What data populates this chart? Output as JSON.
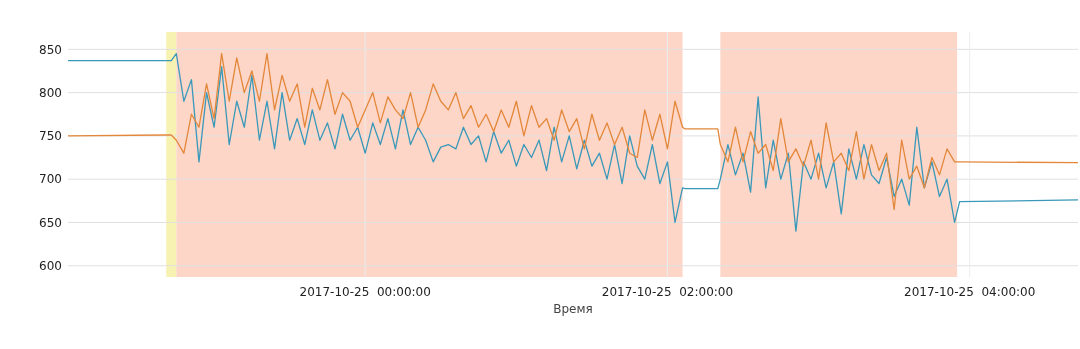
{
  "chart_data": {
    "type": "line",
    "xlabel": "Время",
    "x": [
      "2017-10-24T22:02",
      "2017-10-24T22:40",
      "2017-10-24T22:43",
      "2017-10-24T22:45",
      "2017-10-24T22:48",
      "2017-10-24T22:51",
      "2017-10-24T22:54",
      "2017-10-24T22:57",
      "2017-10-24T23:00",
      "2017-10-24T23:03",
      "2017-10-24T23:06",
      "2017-10-24T23:09",
      "2017-10-24T23:12",
      "2017-10-24T23:15",
      "2017-10-24T23:18",
      "2017-10-24T23:21",
      "2017-10-24T23:24",
      "2017-10-24T23:27",
      "2017-10-24T23:30",
      "2017-10-24T23:33",
      "2017-10-24T23:36",
      "2017-10-24T23:39",
      "2017-10-24T23:42",
      "2017-10-24T23:45",
      "2017-10-24T23:48",
      "2017-10-24T23:51",
      "2017-10-24T23:54",
      "2017-10-24T23:57",
      "2017-10-25T00:00",
      "2017-10-25T00:03",
      "2017-10-25T00:06",
      "2017-10-25T00:09",
      "2017-10-25T00:12",
      "2017-10-25T00:15",
      "2017-10-25T00:18",
      "2017-10-25T00:21",
      "2017-10-25T00:24",
      "2017-10-25T00:27",
      "2017-10-25T00:30",
      "2017-10-25T00:33",
      "2017-10-25T00:36",
      "2017-10-25T00:39",
      "2017-10-25T00:42",
      "2017-10-25T00:45",
      "2017-10-25T00:48",
      "2017-10-25T00:51",
      "2017-10-25T00:54",
      "2017-10-25T00:57",
      "2017-10-25T01:00",
      "2017-10-25T01:03",
      "2017-10-25T01:06",
      "2017-10-25T01:09",
      "2017-10-25T01:12",
      "2017-10-25T01:15",
      "2017-10-25T01:18",
      "2017-10-25T01:21",
      "2017-10-25T01:24",
      "2017-10-25T01:27",
      "2017-10-25T01:30",
      "2017-10-25T01:33",
      "2017-10-25T01:36",
      "2017-10-25T01:39",
      "2017-10-25T01:42",
      "2017-10-25T01:45",
      "2017-10-25T01:48",
      "2017-10-25T01:51",
      "2017-10-25T01:54",
      "2017-10-25T01:57",
      "2017-10-25T02:00",
      "2017-10-25T02:03",
      "2017-10-25T02:06",
      "2017-10-25T02:07",
      "2017-10-25T02:20",
      "2017-10-25T02:21",
      "2017-10-25T02:24",
      "2017-10-25T02:27",
      "2017-10-25T02:30",
      "2017-10-25T02:33",
      "2017-10-25T02:36",
      "2017-10-25T02:39",
      "2017-10-25T02:42",
      "2017-10-25T02:45",
      "2017-10-25T02:48",
      "2017-10-25T02:51",
      "2017-10-25T02:54",
      "2017-10-25T02:57",
      "2017-10-25T03:00",
      "2017-10-25T03:03",
      "2017-10-25T03:06",
      "2017-10-25T03:09",
      "2017-10-25T03:12",
      "2017-10-25T03:15",
      "2017-10-25T03:18",
      "2017-10-25T03:21",
      "2017-10-25T03:24",
      "2017-10-25T03:27",
      "2017-10-25T03:30",
      "2017-10-25T03:33",
      "2017-10-25T03:36",
      "2017-10-25T03:39",
      "2017-10-25T03:42",
      "2017-10-25T03:45",
      "2017-10-25T03:48",
      "2017-10-25T03:51",
      "2017-10-25T03:54",
      "2017-10-25T03:56",
      "2017-10-25T04:43"
    ],
    "series": [
      {
        "color": "#3a98b9",
        "values": [
          837,
          837,
          837,
          845,
          790,
          815,
          720,
          800,
          760,
          830,
          740,
          790,
          760,
          820,
          745,
          790,
          735,
          800,
          745,
          770,
          740,
          780,
          745,
          765,
          735,
          775,
          745,
          760,
          730,
          765,
          740,
          770,
          735,
          780,
          740,
          760,
          745,
          720,
          737,
          740,
          735,
          760,
          740,
          750,
          720,
          755,
          730,
          745,
          715,
          740,
          725,
          745,
          710,
          760,
          720,
          750,
          712,
          745,
          715,
          730,
          700,
          740,
          695,
          750,
          715,
          700,
          740,
          695,
          720,
          650,
          690,
          689,
          689,
          700,
          740,
          705,
          730,
          685,
          795,
          690,
          745,
          700,
          730,
          640,
          720,
          700,
          730,
          690,
          720,
          660,
          735,
          700,
          740,
          705,
          695,
          725,
          680,
          700,
          670,
          760,
          690,
          720,
          680,
          700,
          650,
          674,
          676
        ]
      },
      {
        "color": "#e3873a",
        "values": [
          750,
          751,
          751,
          745,
          730,
          775,
          760,
          810,
          770,
          845,
          790,
          840,
          800,
          825,
          790,
          845,
          780,
          820,
          790,
          810,
          760,
          805,
          780,
          815,
          775,
          800,
          790,
          760,
          780,
          800,
          765,
          795,
          780,
          770,
          800,
          760,
          780,
          810,
          790,
          780,
          800,
          770,
          785,
          760,
          775,
          755,
          780,
          760,
          790,
          750,
          785,
          760,
          770,
          745,
          780,
          755,
          770,
          735,
          775,
          745,
          765,
          740,
          760,
          730,
          725,
          780,
          745,
          775,
          735,
          790,
          760,
          758,
          758,
          740,
          720,
          760,
          720,
          755,
          730,
          740,
          710,
          770,
          720,
          735,
          715,
          745,
          700,
          765,
          720,
          730,
          710,
          755,
          700,
          740,
          710,
          730,
          665,
          745,
          700,
          715,
          690,
          725,
          705,
          735,
          720,
          720,
          719
        ]
      }
    ],
    "xlim": [
      "2017-10-24T22:02",
      "2017-10-25T04:43"
    ],
    "xticks": [
      {
        "value": "2017-10-25T00:00",
        "label": "2017-10-25  00:00:00"
      },
      {
        "value": "2017-10-25T02:00",
        "label": "2017-10-25  02:00:00"
      },
      {
        "value": "2017-10-25T04:00",
        "label": "2017-10-25  04:00:00"
      }
    ],
    "ylim": [
      587,
      870
    ],
    "yticks": [
      600,
      650,
      700,
      750,
      800,
      850
    ],
    "grid": true,
    "bands": [
      {
        "axis": "x",
        "from": "2017-10-24T22:41",
        "to": "2017-10-24T22:45",
        "color": "#f8f2b2"
      },
      {
        "axis": "x",
        "from": "2017-10-24T22:45",
        "to": "2017-10-25T02:06",
        "color": "#fdd6c8"
      },
      {
        "axis": "x",
        "from": "2017-10-25T02:21",
        "to": "2017-10-25T03:55",
        "color": "#fdd6c8"
      }
    ]
  }
}
